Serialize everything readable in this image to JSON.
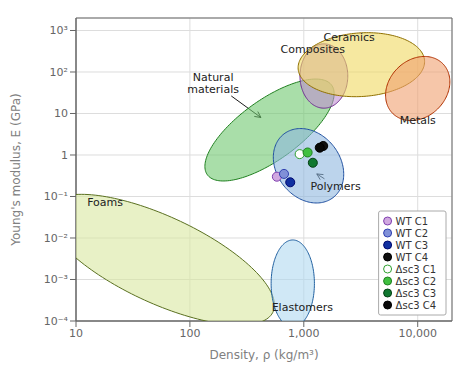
{
  "chart_data": {
    "type": "scatter",
    "log": true,
    "grid": true,
    "legend": "lower right",
    "xlabel": "Density, ρ  (kg/m³)",
    "ylabel": "Young's modulus, E (GPa)",
    "xlim": [
      10,
      20000
    ],
    "ylim": [
      0.0001,
      2000
    ],
    "xticks": [
      10,
      100,
      {
        "value": 1000,
        "label": "1,000"
      },
      {
        "value": 10000,
        "label": "10,000"
      }
    ],
    "yticks": [
      {
        "value": 0.0001,
        "label": "10⁻⁴"
      },
      {
        "value": 0.001,
        "label": "10⁻³"
      },
      {
        "value": 0.01,
        "label": "10⁻²"
      },
      {
        "value": 0.1,
        "label": "10⁻¹"
      },
      1,
      10,
      {
        "value": 100,
        "label": "10²"
      },
      {
        "value": 1000,
        "label": "10³"
      }
    ],
    "regions": [
      {
        "label": "Foams",
        "center_x": 55,
        "center_y": 0.003,
        "width_log": 1.3,
        "height_log": 3.5,
        "angle": 28,
        "color": "#d8e8a0",
        "edge_color": "#5a7020",
        "label_x": 18,
        "label_y": 0.075,
        "arrow_to_x": null,
        "arrow_to_y": null
      },
      {
        "label": "Natural\nmaterials",
        "center_x": 500,
        "center_y": 4,
        "width_log": 0.75,
        "height_log": 2.6,
        "angle": -20,
        "color": "#70c870",
        "edge_color": "#208020",
        "label_x": 160,
        "label_y": 55,
        "arrow_to_x": 420,
        "arrow_to_y": 8
      },
      {
        "label": "Polymers",
        "center_x": 1100,
        "center_y": 0.55,
        "width_log": 0.6,
        "height_log": 1.8,
        "angle": 5,
        "color": "#90b8e0",
        "edge_color": "#2050a0",
        "label_x": 1900,
        "label_y": 0.18,
        "arrow_to_x": 1300,
        "arrow_to_y": 0.35
      },
      {
        "label": "Elastomers",
        "center_x": 800,
        "center_y": 0.0008,
        "width_log": 0.38,
        "height_log": 2.1,
        "angle": 0,
        "color": "#b0d8f0",
        "edge_color": "#2060a0",
        "label_x": 970,
        "label_y": 0.00022,
        "arrow_to_x": null,
        "arrow_to_y": null
      },
      {
        "label": "Composites",
        "center_x": 1500,
        "center_y": 80,
        "width_log": 0.42,
        "height_log": 1.55,
        "angle": 0,
        "color": "#c090d0",
        "edge_color": "#703090",
        "label_x": 1200,
        "label_y": 350,
        "arrow_to_x": null,
        "arrow_to_y": null
      },
      {
        "label": "Ceramics",
        "center_x": 3200,
        "center_y": 150,
        "width_log": 1.1,
        "height_log": 1.55,
        "angle": -8,
        "color": "#f0d860",
        "edge_color": "#907000",
        "label_x": 2500,
        "label_y": 700,
        "arrow_to_x": null,
        "arrow_to_y": null
      },
      {
        "label": "Metals",
        "center_x": 10000,
        "center_y": 40,
        "width_log": 0.55,
        "height_log": 1.55,
        "angle": -5,
        "color": "#f0a070",
        "edge_color": "#b03000",
        "label_x": 10000,
        "label_y": 7,
        "arrow_to_x": null,
        "arrow_to_y": null
      }
    ],
    "series": [
      {
        "name": "WT C1",
        "color": "#d0a8e0",
        "edge_color": "#8040b0",
        "x": [
          580
        ],
        "y": [
          0.3
        ]
      },
      {
        "name": "WT C2",
        "color": "#8090d8",
        "edge_color": "#3040b0",
        "x": [
          670
        ],
        "y": [
          0.35
        ]
      },
      {
        "name": "WT C3",
        "color": "#1030a0",
        "edge_color": "#000870",
        "x": [
          760
        ],
        "y": [
          0.22
        ]
      },
      {
        "name": "WT C4",
        "color": "#101010",
        "edge_color": "#000000",
        "x": [
          1480
        ],
        "y": [
          1.65
        ]
      },
      {
        "name": "Δsc3 C1",
        "color": "#ffffff",
        "edge_color": "#30a030",
        "x": [
          920
        ],
        "y": [
          1.05
        ]
      },
      {
        "name": "Δsc3 C2",
        "color": "#40c040",
        "edge_color": "#208020",
        "x": [
          1080
        ],
        "y": [
          1.15
        ]
      },
      {
        "name": "Δsc3 C3",
        "color": "#107830",
        "edge_color": "#054015",
        "x": [
          1200
        ],
        "y": [
          0.65
        ]
      },
      {
        "name": "Δsc3 C4",
        "color": "#080808",
        "edge_color": "#000000",
        "x": [
          1380
        ],
        "y": [
          1.5
        ]
      }
    ]
  }
}
